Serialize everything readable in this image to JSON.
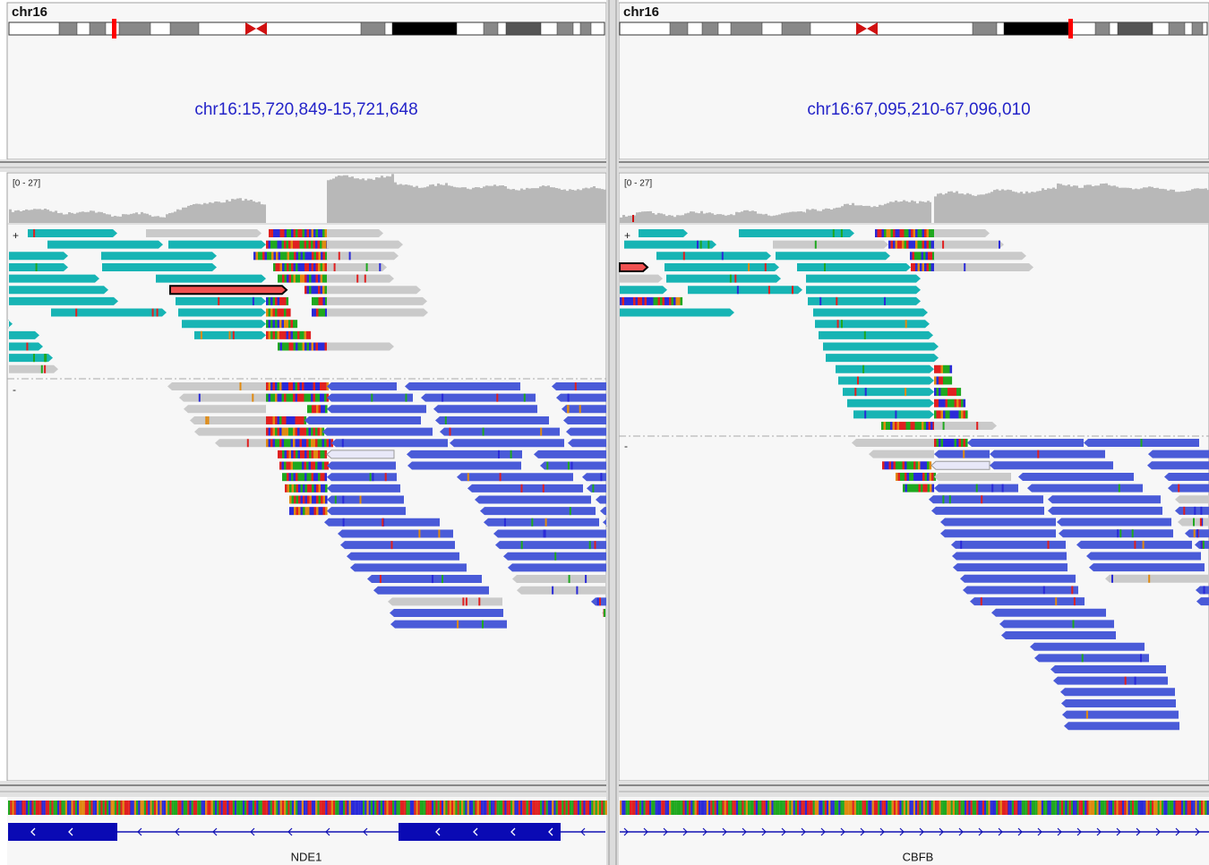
{
  "panels": [
    {
      "chromosome": "chr16",
      "locus": "chr16:15,720,849-15,721,648",
      "coverage_range": "[0 - 27]",
      "strand_plus": "+",
      "strand_minus": "-",
      "gene": "NDE1"
    },
    {
      "chromosome": "chr16",
      "locus": "chr16:67,095,210-67,096,010",
      "coverage_range": "[0 - 27]",
      "strand_plus": "+",
      "strand_minus": "-",
      "gene": "CBFB"
    }
  ]
}
